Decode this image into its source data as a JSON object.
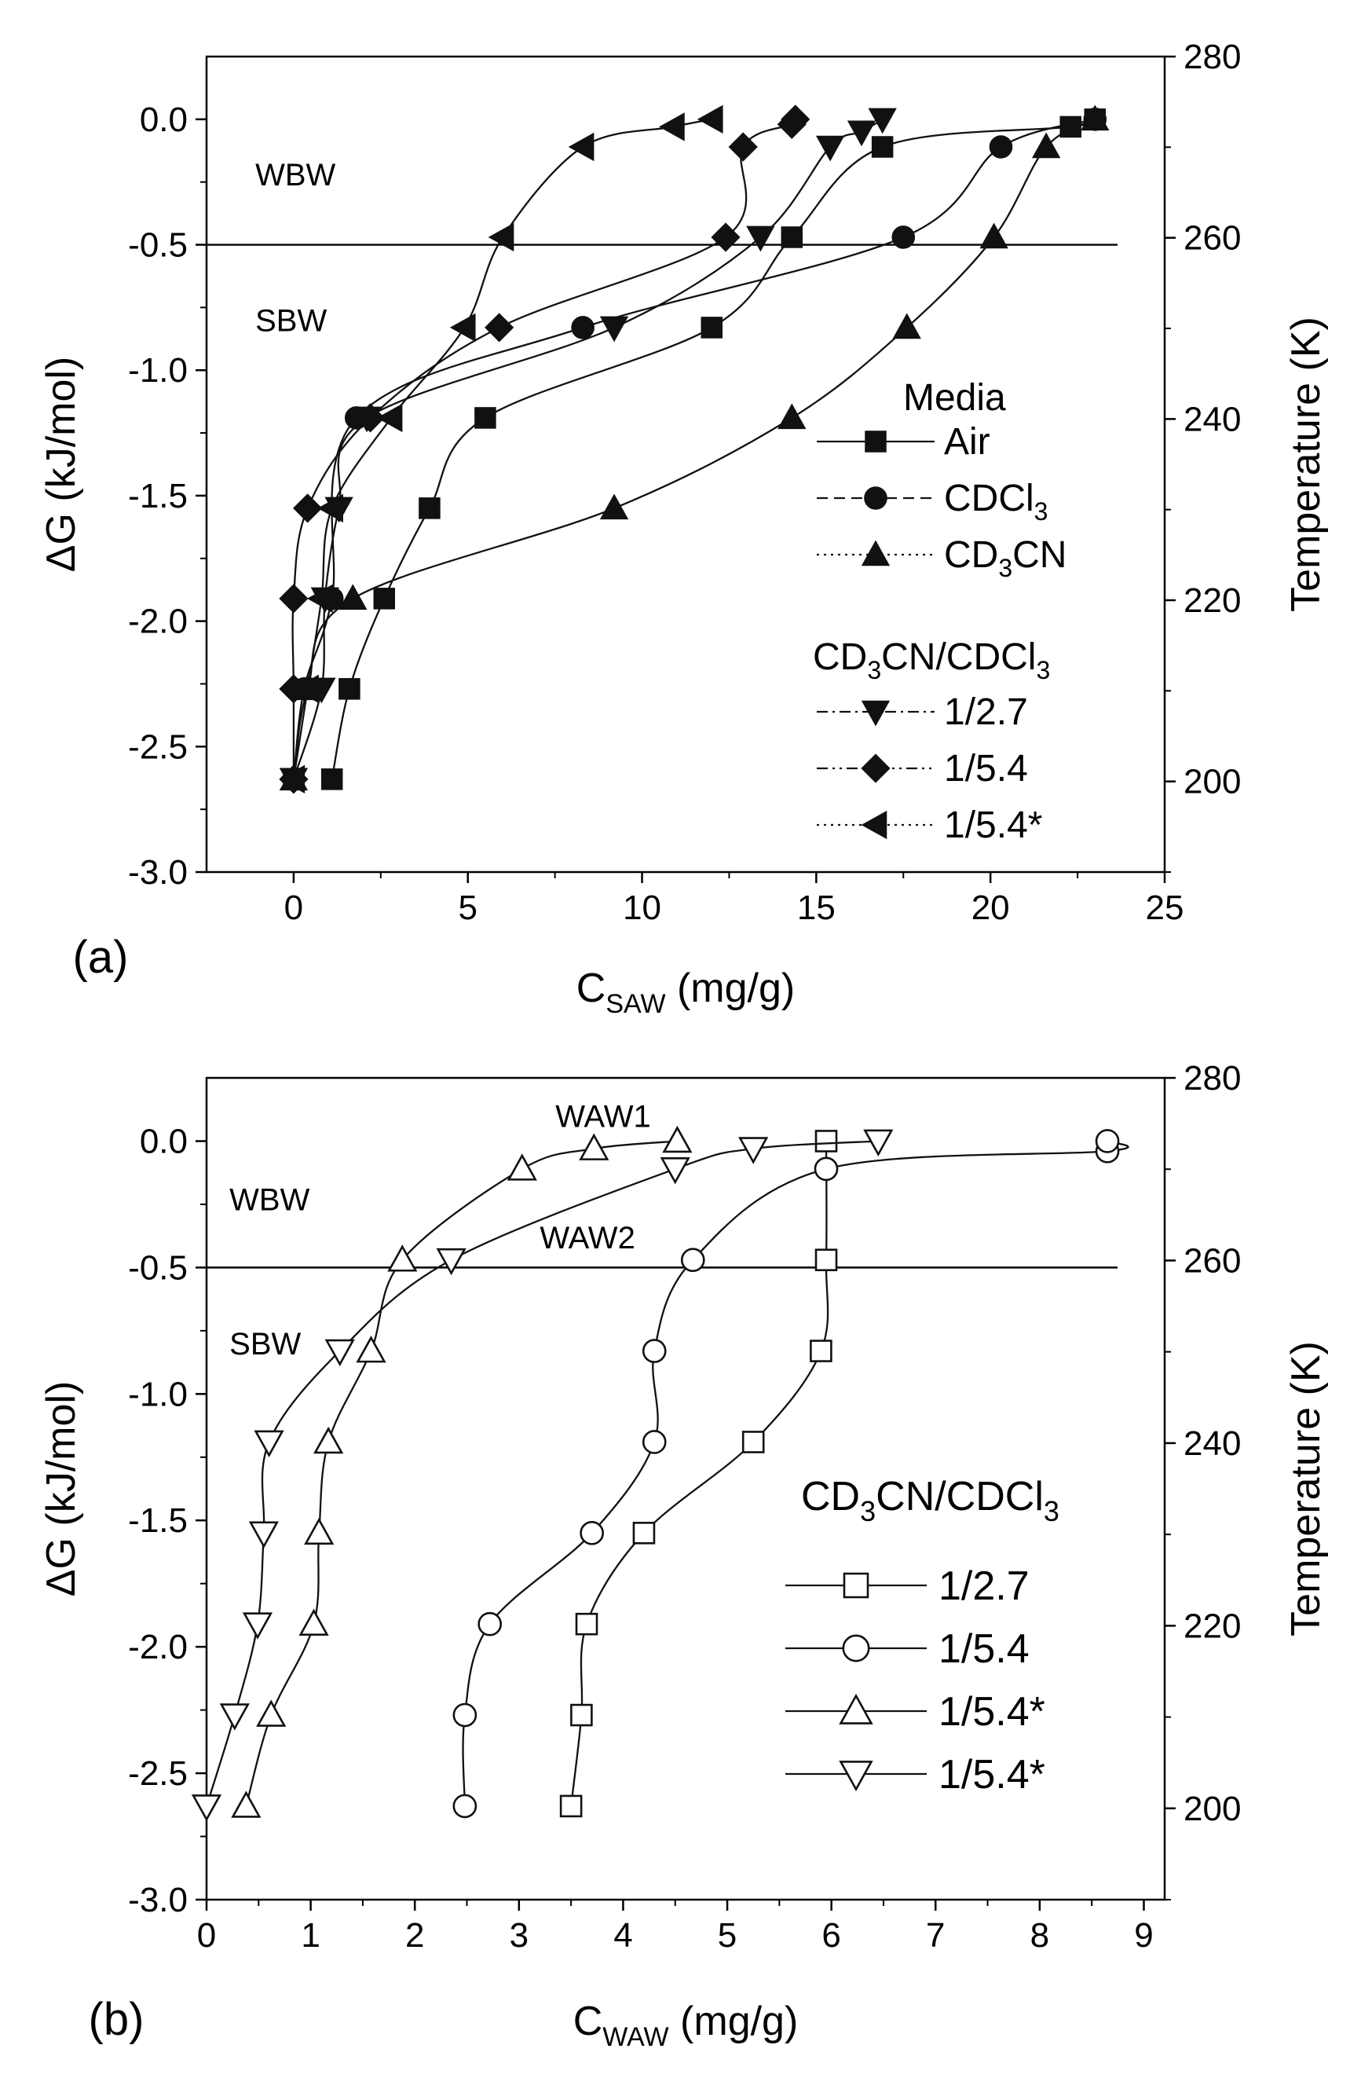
{
  "figure": {
    "panels": [
      "(a)",
      "(b)"
    ]
  },
  "chart_data": [
    {
      "type": "line",
      "panel_label": "(a)",
      "xlabel": {
        "main": "C",
        "sub": "SAW",
        "rest": "  (mg/g)"
      },
      "ylabel": "ΔG  (kJ/mol)",
      "y2label": "Temperature  (K)",
      "xlim": [
        -2.5,
        25
      ],
      "ylim": [
        -3.0,
        0.25
      ],
      "y2lim": [
        190,
        280
      ],
      "xticks": [
        0,
        5,
        10,
        15,
        20,
        25
      ],
      "yticks": [
        -3.0,
        -2.5,
        -2.0,
        -1.5,
        -1.0,
        -0.5,
        0.0
      ],
      "y2ticks": [
        200,
        220,
        240,
        260,
        280
      ],
      "ytick_labels": [
        "-3.0",
        "-2.5",
        "-2.0",
        "-1.5",
        "-1.0",
        "-0.5",
        "0.0"
      ],
      "hline": -0.5,
      "annotations": [
        {
          "text": "WBW",
          "x": -1.1,
          "y": -0.22
        },
        {
          "text": "SBW",
          "x": -1.1,
          "y": -0.8
        }
      ],
      "legend": {
        "title": "Media",
        "group_title": {
          "pre": "CD",
          "s1": "3",
          "mid": "CN/CDCl",
          "s2": "3"
        }
      },
      "series": [
        {
          "name": "Air",
          "label": {
            "main": "Air"
          },
          "marker": "square",
          "filled": true,
          "line": "solid",
          "x": [
            1.1,
            1.6,
            2.6,
            3.9,
            5.5,
            12.0,
            14.3,
            16.9,
            22.3,
            23.0
          ],
          "y": [
            -2.63,
            -2.27,
            -1.91,
            -1.55,
            -1.19,
            -0.83,
            -0.47,
            -0.11,
            -0.03,
            0.0
          ]
        },
        {
          "name": "CDCl3",
          "label": {
            "main": "CDCl",
            "sub": "3"
          },
          "marker": "circle",
          "filled": true,
          "line": "dash",
          "x": [
            0.0,
            0.3,
            1.1,
            1.8,
            8.3,
            17.5,
            20.3,
            23.0
          ],
          "y": [
            -2.63,
            -2.27,
            -1.91,
            -1.19,
            -0.83,
            -0.47,
            -0.11,
            0.0
          ]
        },
        {
          "name": "CD3CN",
          "label": {
            "pre": "CD",
            "sub": "3",
            "post": "CN"
          },
          "marker": "triangle-up",
          "filled": true,
          "line": "dot",
          "x": [
            0.0,
            0.4,
            1.7,
            9.2,
            14.3,
            17.6,
            20.1,
            21.6,
            23.0
          ],
          "y": [
            -2.63,
            -2.27,
            -1.91,
            -1.55,
            -1.19,
            -0.83,
            -0.47,
            -0.11,
            0.0
          ]
        },
        {
          "name": "1/2.7",
          "label": {
            "main": "1/2.7"
          },
          "marker": "triangle-down",
          "filled": true,
          "line": "dashdot",
          "x": [
            0.0,
            0.8,
            0.9,
            1.3,
            2.1,
            9.2,
            13.4,
            15.4,
            16.3,
            16.9
          ],
          "y": [
            -2.63,
            -2.27,
            -1.91,
            -1.55,
            -1.19,
            -0.83,
            -0.47,
            -0.11,
            -0.05,
            0.0
          ]
        },
        {
          "name": "1/5.4",
          "label": {
            "main": "1/5.4"
          },
          "marker": "diamond",
          "filled": true,
          "line": "dashdotdot",
          "x": [
            0.0,
            0.0,
            0.0,
            0.4,
            2.2,
            5.9,
            12.4,
            12.9,
            14.3,
            14.4
          ],
          "y": [
            -2.63,
            -2.27,
            -1.91,
            -1.55,
            -1.19,
            -0.83,
            -0.47,
            -0.11,
            -0.02,
            0.0
          ]
        },
        {
          "name": "1/5.4*",
          "label": {
            "main": "1/5.4*"
          },
          "marker": "triangle-left",
          "filled": true,
          "line": "dot",
          "x": [
            0.0,
            0.4,
            0.8,
            1.1,
            2.8,
            4.9,
            6.0,
            8.3,
            10.9,
            12.0
          ],
          "y": [
            -2.63,
            -2.27,
            -1.91,
            -1.55,
            -1.19,
            -0.83,
            -0.47,
            -0.11,
            -0.03,
            0.0
          ]
        }
      ]
    },
    {
      "type": "line",
      "panel_label": "(b)",
      "xlabel": {
        "main": "C",
        "sub": "WAW",
        "rest": "  (mg/g)"
      },
      "ylabel": "ΔG  (kJ/mol)",
      "y2label": "Temperature  (K)",
      "xlim": [
        0,
        9.2
      ],
      "ylim": [
        -3.0,
        0.25
      ],
      "y2lim": [
        190,
        280
      ],
      "xticks": [
        0,
        1,
        2,
        3,
        4,
        5,
        6,
        7,
        8,
        9
      ],
      "yticks": [
        -3.0,
        -2.5,
        -2.0,
        -1.5,
        -1.0,
        -0.5,
        0.0
      ],
      "y2ticks": [
        200,
        220,
        240,
        260,
        280
      ],
      "ytick_labels": [
        "-3.0",
        "-2.5",
        "-2.0",
        "-1.5",
        "-1.0",
        "-0.5",
        "0.0"
      ],
      "hline": -0.5,
      "annotations": [
        {
          "text": "WAW1",
          "x": 3.35,
          "y": 0.1
        },
        {
          "text": "WAW2",
          "x": 3.2,
          "y": -0.38
        },
        {
          "text": "WBW",
          "x": 0.22,
          "y": -0.23
        },
        {
          "text": "SBW",
          "x": 0.22,
          "y": -0.8
        }
      ],
      "legend": {
        "title": "",
        "group_title": {
          "pre": "CD",
          "s1": "3",
          "mid": "CN/CDCl",
          "s2": "3"
        }
      },
      "series": [
        {
          "name": "1/2.7",
          "label": {
            "main": "1/2.7"
          },
          "marker": "square",
          "filled": false,
          "line": "solid",
          "x": [
            3.5,
            3.6,
            3.65,
            4.2,
            5.25,
            5.9,
            5.95,
            5.95
          ],
          "y": [
            -2.63,
            -2.27,
            -1.91,
            -1.55,
            -1.19,
            -0.83,
            -0.47,
            0.0
          ]
        },
        {
          "name": "1/5.4",
          "label": {
            "main": "1/5.4"
          },
          "marker": "circle",
          "filled": false,
          "line": "solid",
          "x": [
            2.48,
            2.48,
            2.72,
            3.7,
            4.3,
            4.3,
            4.67,
            5.95,
            8.65,
            8.65
          ],
          "y": [
            -2.63,
            -2.27,
            -1.91,
            -1.55,
            -1.19,
            -0.83,
            -0.47,
            -0.11,
            -0.04,
            0.0
          ]
        },
        {
          "name": "1/5.4*",
          "label": {
            "main": "1/5.4*"
          },
          "marker": "triangle-up",
          "filled": false,
          "line": "solid",
          "x": [
            0.38,
            0.62,
            1.03,
            1.08,
            1.17,
            1.58,
            1.88,
            3.03,
            3.72,
            4.52
          ],
          "y": [
            -2.63,
            -2.27,
            -1.91,
            -1.55,
            -1.19,
            -0.83,
            -0.47,
            -0.11,
            -0.03,
            0.0
          ]
        },
        {
          "name": "1/5.4*",
          "label": {
            "main": "1/5.4*"
          },
          "marker": "triangle-down",
          "filled": false,
          "line": "solid",
          "x": [
            0.0,
            0.27,
            0.49,
            0.55,
            0.6,
            1.28,
            2.35,
            4.5,
            5.25,
            6.45
          ],
          "y": [
            -2.63,
            -2.27,
            -1.91,
            -1.55,
            -1.19,
            -0.83,
            -0.47,
            -0.11,
            -0.03,
            0.0
          ]
        }
      ]
    }
  ]
}
